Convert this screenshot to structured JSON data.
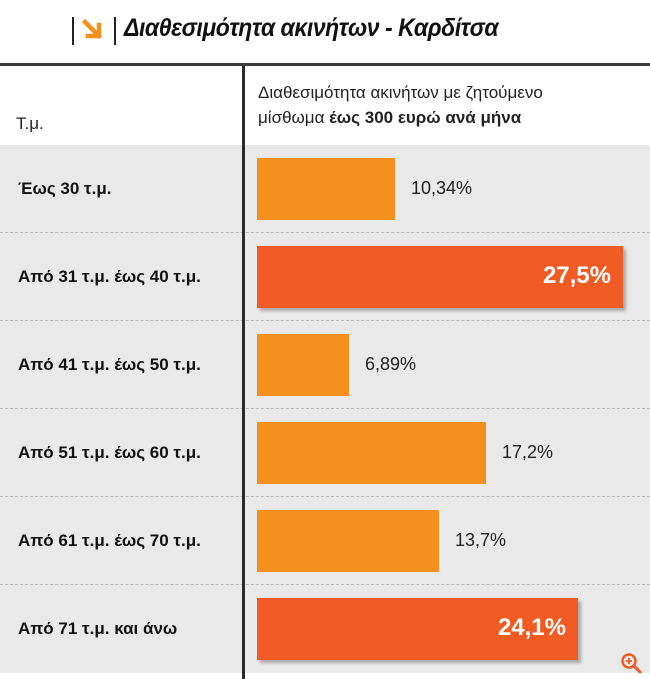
{
  "title": "Διαθεσιμότητα ακινήτων - Καρδίτσα",
  "header": {
    "left": "Τ.μ.",
    "right_line1": "Διαθεσιμότητα ακινήτων με ζητούμενο",
    "right_line2_plain": "μίσθωμα ",
    "right_line2_bold": "έως 300 ευρώ ανά μήνα"
  },
  "colors": {
    "bar_normal": "#f4911e",
    "bar_highlight": "#f05a23",
    "row_bg": "#e9e9ea",
    "icon_accent": "#f4911e"
  },
  "icons": [
    "logo-arrow-icon",
    "zoom-in-icon"
  ],
  "chart_data": {
    "type": "bar",
    "orientation": "horizontal",
    "title": "Διαθεσιμότητα ακινήτων - Καρδίτσα",
    "xlabel": "",
    "ylabel": "Τ.μ.",
    "xlim": [
      0,
      27.5
    ],
    "grid": false,
    "categories": [
      "Έως 30 τ.μ.",
      "Από 31 τ.μ. έως 40 τ.μ.",
      "Από 41 τ.μ. έως 50 τ.μ.",
      "Από 51 τ.μ. έως 60 τ.μ.",
      "Από 61 τ.μ. έως 70 τ.μ.",
      "Από 71 τ.μ. και άνω"
    ],
    "values": [
      10.34,
      27.5,
      6.89,
      17.2,
      13.7,
      24.1
    ],
    "value_labels": [
      "10,34%",
      "27,5%",
      "6,89%",
      "17,2%",
      "13,7%",
      "24,1%"
    ],
    "highlight": [
      false,
      true,
      false,
      false,
      false,
      true
    ]
  }
}
